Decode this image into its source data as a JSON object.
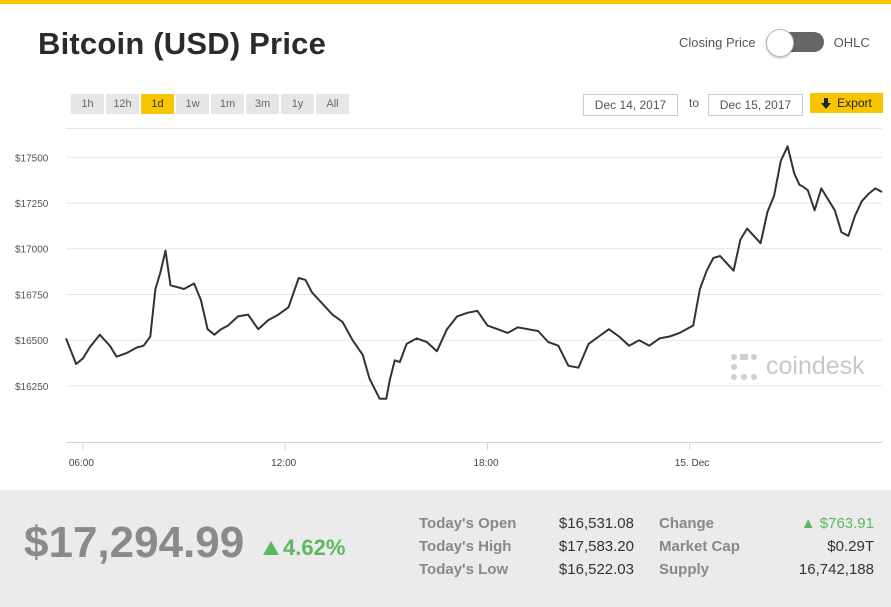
{
  "header": {
    "title": "Bitcoin (USD) Price",
    "toggle_left": "Closing Price",
    "toggle_right": "OHLC"
  },
  "ranges": [
    "1h",
    "12h",
    "1d",
    "1w",
    "1m",
    "3m",
    "1y",
    "All"
  ],
  "active_range": "1d",
  "date_from": "Dec 14, 2017",
  "to_label": "to",
  "date_to": "Dec 15, 2017",
  "export_label": "Export",
  "brand": "coindesk",
  "colors": {
    "accent": "#f7c600",
    "positive": "#5cb85c",
    "line": "#333333"
  },
  "chart_data": {
    "type": "line",
    "yticks": [
      17500,
      17250,
      17000,
      16750,
      16500,
      16250
    ],
    "ytick_labels": [
      "$17500",
      "$17250",
      "$17000",
      "$16750",
      "$16500",
      "$16250"
    ],
    "xticks": [
      6,
      12,
      18,
      24
    ],
    "xtick_labels": [
      "06:00",
      "12:00",
      "18:00",
      "15. Dec"
    ],
    "xlim": [
      5.5,
      29.7
    ],
    "ylim": [
      16020,
      17660
    ],
    "grid": true,
    "series": [
      {
        "x": [
          5.5,
          5.65,
          5.8,
          6.0,
          6.2,
          6.5,
          6.8,
          7.0,
          7.3,
          7.6,
          7.8,
          8.0,
          8.15,
          8.3,
          8.45,
          8.6,
          8.8,
          9.0,
          9.3,
          9.5,
          9.7,
          9.9,
          10.1,
          10.3,
          10.6,
          10.9,
          11.2,
          11.5,
          11.8,
          12.1,
          12.4,
          12.6,
          12.8,
          13.1,
          13.4,
          13.7,
          14.0,
          14.3,
          14.5,
          14.8,
          15.0,
          15.1,
          15.25,
          15.4,
          15.6,
          15.9,
          16.2,
          16.5,
          16.8,
          17.1,
          17.4,
          17.7,
          18.0,
          18.3,
          18.6,
          18.9,
          19.2,
          19.5,
          19.8,
          20.1,
          20.4,
          20.7,
          21.0,
          21.3,
          21.6,
          21.9,
          22.2,
          22.5,
          22.8,
          23.1,
          23.4,
          23.7,
          24.0,
          24.1,
          24.3,
          24.5,
          24.7,
          24.9,
          25.1,
          25.3,
          25.5,
          25.7,
          25.9,
          26.1,
          26.3,
          26.5,
          26.7,
          26.9,
          27.1,
          27.25,
          27.35,
          27.5,
          27.7,
          27.9,
          28.1,
          28.3,
          28.5,
          28.7,
          28.9,
          29.1,
          29.3,
          29.5,
          29.7
        ],
        "y": [
          16510,
          16440,
          16370,
          16400,
          16460,
          16530,
          16470,
          16410,
          16430,
          16460,
          16470,
          16520,
          16780,
          16870,
          16990,
          16800,
          16790,
          16780,
          16810,
          16720,
          16560,
          16530,
          16560,
          16580,
          16630,
          16640,
          16560,
          16610,
          16640,
          16680,
          16840,
          16830,
          16760,
          16700,
          16640,
          16600,
          16500,
          16420,
          16290,
          16180,
          16180,
          16280,
          16390,
          16380,
          16480,
          16510,
          16490,
          16440,
          16560,
          16630,
          16650,
          16660,
          16580,
          16560,
          16540,
          16570,
          16560,
          16550,
          16490,
          16470,
          16360,
          16350,
          16480,
          16520,
          16560,
          16520,
          16470,
          16500,
          16470,
          16510,
          16520,
          16540,
          16570,
          16580,
          16780,
          16880,
          16950,
          16960,
          16920,
          16880,
          17050,
          17110,
          17070,
          17030,
          17200,
          17290,
          17480,
          17560,
          17410,
          17350,
          17340,
          17320,
          17210,
          17330,
          17270,
          17210,
          17090,
          17070,
          17180,
          17260,
          17300,
          17330,
          17310
        ]
      }
    ]
  },
  "footer": {
    "price": "$17,294.99",
    "pct": "4.62%",
    "stats_left": [
      {
        "label": "Today's Open",
        "value": "$16,531.08"
      },
      {
        "label": "Today's High",
        "value": "$17,583.20"
      },
      {
        "label": "Today's Low",
        "value": "$16,522.03"
      }
    ],
    "stats_right": [
      {
        "label": "Change",
        "value": "$763.91"
      },
      {
        "label": "Market Cap",
        "value": "$0.29T"
      },
      {
        "label": "Supply",
        "value": "16,742,188"
      }
    ]
  }
}
